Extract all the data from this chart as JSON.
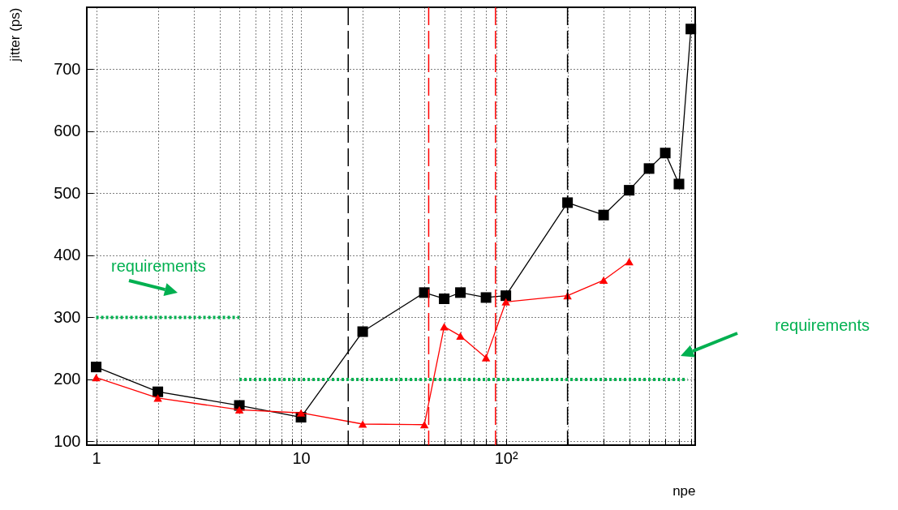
{
  "chart_data": {
    "type": "line",
    "xlabel": "npe",
    "ylabel": "jitter (ps)",
    "log": "x",
    "grid": true,
    "xlim": [
      0.9,
      840
    ],
    "ylim": [
      94,
      800
    ],
    "xticks": [
      1,
      {
        "value": 2,
        "label": null
      },
      {
        "value": 3,
        "label": null
      },
      {
        "value": 4,
        "label": null
      },
      {
        "value": 5,
        "label": null
      },
      {
        "value": 6,
        "label": null
      },
      {
        "value": 7,
        "label": null
      },
      {
        "value": 8,
        "label": null
      },
      {
        "value": 9,
        "label": null
      },
      10,
      {
        "value": 20,
        "label": null
      },
      {
        "value": 30,
        "label": null
      },
      {
        "value": 40,
        "label": null
      },
      {
        "value": 50,
        "label": null
      },
      {
        "value": 60,
        "label": null
      },
      {
        "value": 70,
        "label": null
      },
      {
        "value": 80,
        "label": null
      },
      {
        "value": 90,
        "label": null
      },
      {
        "value": 100,
        "label": "10²"
      },
      {
        "value": 200,
        "label": null
      },
      {
        "value": 300,
        "label": null
      },
      {
        "value": 400,
        "label": null
      },
      {
        "value": 500,
        "label": null
      },
      {
        "value": 600,
        "label": null
      },
      {
        "value": 700,
        "label": null
      },
      {
        "value": 800,
        "label": null
      }
    ],
    "yticks": [
      100,
      200,
      300,
      400,
      500,
      600,
      700
    ],
    "series": [
      {
        "color": "#000000",
        "marker": "square",
        "line_style": "solid",
        "x": [
          1,
          2,
          5,
          10,
          20,
          40,
          50,
          60,
          80,
          100,
          200,
          300,
          400,
          500,
          600,
          700,
          800
        ],
        "values": [
          220,
          180,
          158,
          139,
          277,
          340,
          330,
          340,
          332,
          335,
          485,
          465,
          505,
          540,
          565,
          515,
          765
        ]
      },
      {
        "color": "#ff0000",
        "marker": "triangle",
        "line_style": "solid",
        "x": [
          1,
          2,
          5,
          10,
          20,
          40,
          50,
          60,
          80,
          100,
          200,
          300,
          400
        ],
        "values": [
          203,
          170,
          151,
          146,
          128,
          127,
          285,
          270,
          235,
          325,
          335,
          360,
          390
        ]
      },
      {
        "color": "#00b050",
        "marker": "none",
        "line_style": "dotted",
        "x": [
          1,
          5
        ],
        "values": [
          300,
          300
        ]
      },
      {
        "color": "#00b050",
        "marker": "none",
        "line_style": "dotted",
        "x": [
          5,
          770
        ],
        "values": [
          200,
          200
        ]
      }
    ],
    "ref_lines": [
      {
        "axis": "x",
        "value": 17,
        "color": "#000000",
        "line_style": "dashed"
      },
      {
        "axis": "x",
        "value": 200,
        "color": "#000000",
        "line_style": "dashed"
      },
      {
        "axis": "x",
        "value": 42,
        "color": "#ff0000",
        "line_style": "dashed"
      },
      {
        "axis": "x",
        "value": 89,
        "color": "#ff0000",
        "line_style": "dashed"
      }
    ],
    "annotations": [
      "requirements",
      "requirements"
    ]
  }
}
